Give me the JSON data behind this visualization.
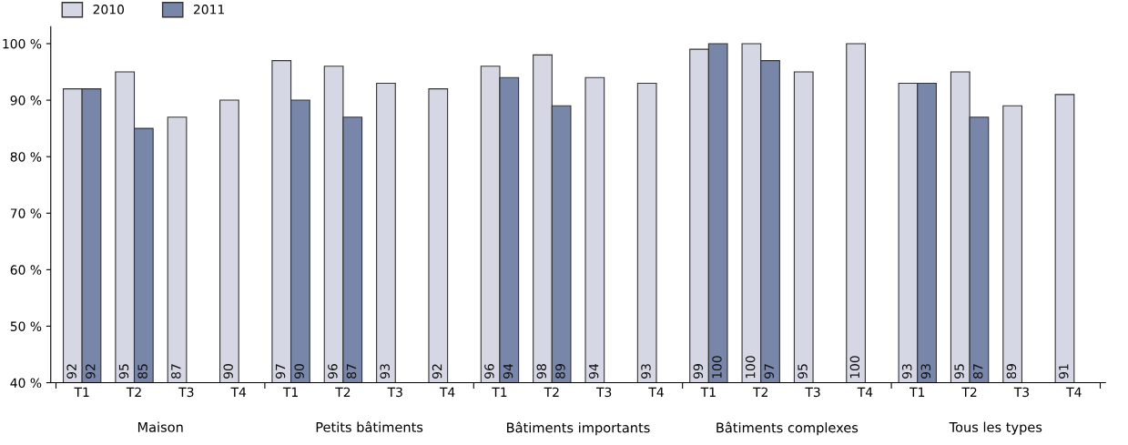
{
  "chart_data": {
    "type": "bar",
    "categories": [
      "T1",
      "T2",
      "T3",
      "T4",
      "T1",
      "T2",
      "T3",
      "T4",
      "T1",
      "T2",
      "T3",
      "T4",
      "T1",
      "T2",
      "T3",
      "T4",
      "T1",
      "T2",
      "T3",
      "T4"
    ],
    "series": [
      {
        "name": "2010",
        "color": "#d5d8e4",
        "values": [
          92,
          95,
          87,
          90,
          97,
          96,
          93,
          92,
          96,
          98,
          94,
          93,
          99,
          100,
          95,
          100,
          93,
          95,
          89,
          91
        ]
      },
      {
        "name": "2011",
        "color": "#7886aa",
        "values": [
          92,
          85,
          null,
          null,
          90,
          87,
          null,
          null,
          94,
          89,
          null,
          null,
          100,
          97,
          null,
          null,
          93,
          87,
          null,
          null
        ]
      }
    ],
    "annotations": [
      "Maison",
      "Petits bâtiments",
      "Bâtiments importants",
      "Bâtiments complexes",
      "Tous les types"
    ],
    "ylim": [
      40,
      103
    ],
    "yticks": [
      {
        "value": 40,
        "label": "40 %"
      },
      {
        "value": 50,
        "label": "50 %"
      },
      {
        "value": 60,
        "label": "60 %"
      },
      {
        "value": 70,
        "label": "70 %"
      },
      {
        "value": 80,
        "label": "80 %"
      },
      {
        "value": 90,
        "label": "90 %"
      },
      {
        "value": 100,
        "label": "100 %"
      }
    ],
    "data_labels": true,
    "grid": false,
    "legend": "top left"
  }
}
